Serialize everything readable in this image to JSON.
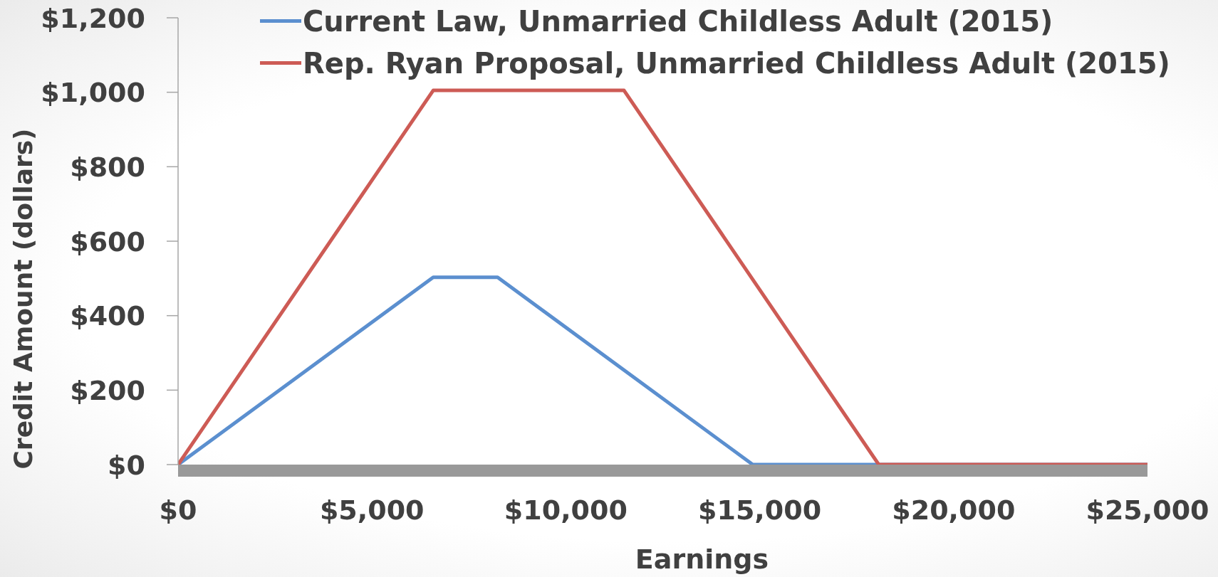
{
  "chart_data": {
    "type": "line",
    "xlabel": "Earnings",
    "ylabel": "Credit Amount (dollars)",
    "series": [
      {
        "name": "Current Law, Unmarried Childless Adult (2015)",
        "color": "#5b8fcf",
        "x": [
          0,
          6580,
          8240,
          14820,
          25000
        ],
        "values": [
          0,
          503,
          503,
          0,
          0
        ]
      },
      {
        "name": "Rep. Ryan Proposal, Unmarried Childless Adult (2015)",
        "color": "#cd5b55",
        "x": [
          0,
          6580,
          11500,
          18070,
          25000
        ],
        "values": [
          0,
          1005,
          1005,
          0,
          0
        ]
      }
    ],
    "xlim": [
      0,
      25000
    ],
    "xticks": [
      {
        "value": 0,
        "label": "$0"
      },
      {
        "value": 5000,
        "label": "$5,000"
      },
      {
        "value": 10000,
        "label": "$10,000"
      },
      {
        "value": 15000,
        "label": "$15,000"
      },
      {
        "value": 20000,
        "label": "$20,000"
      },
      {
        "value": 25000,
        "label": "$25,000"
      }
    ],
    "ylim": [
      0,
      1200
    ],
    "yticks": [
      {
        "value": 0,
        "label": "$0"
      },
      {
        "value": 200,
        "label": "$200"
      },
      {
        "value": 400,
        "label": "$400"
      },
      {
        "value": 600,
        "label": "$600"
      },
      {
        "value": 800,
        "label": "$800"
      },
      {
        "value": 1000,
        "label": "$1,000"
      },
      {
        "value": 1200,
        "label": "$1,200"
      }
    ],
    "legend": "top",
    "line_style": "solid"
  }
}
